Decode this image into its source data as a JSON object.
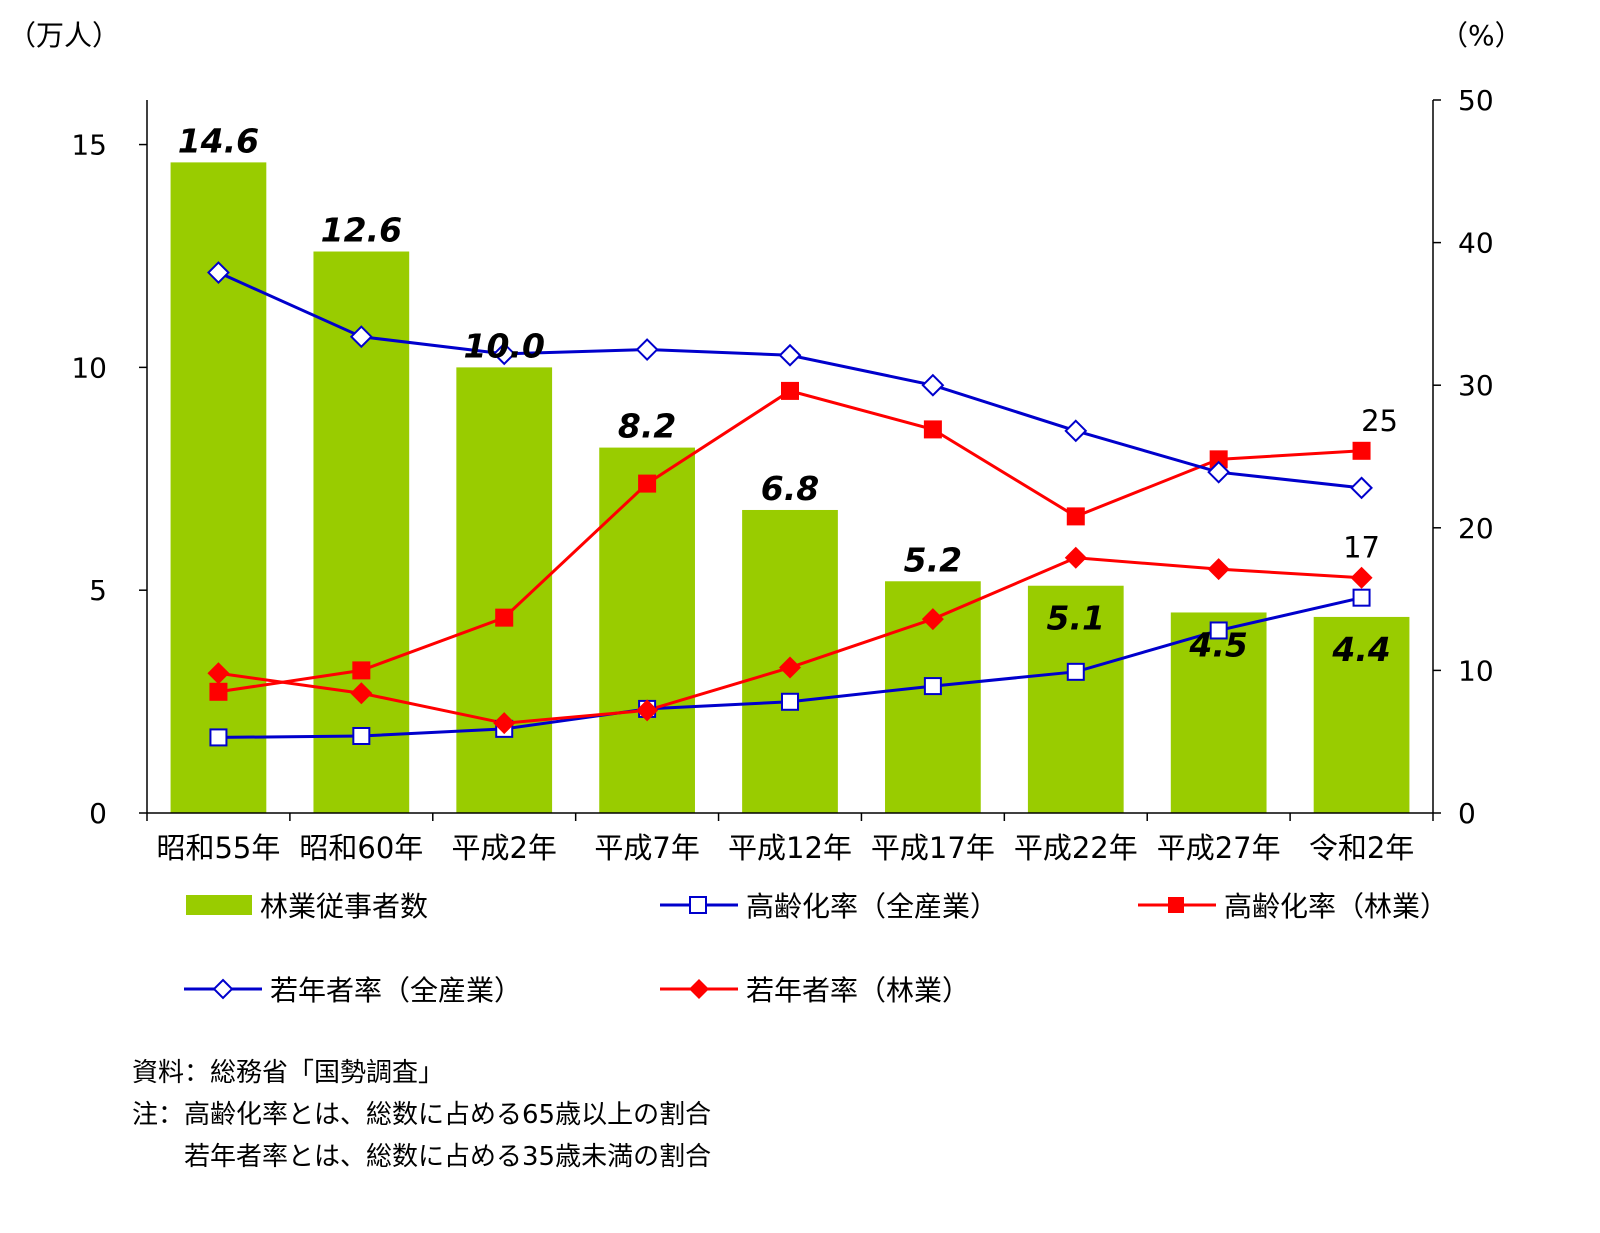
{
  "units": {
    "left": "（万人）",
    "right": "（%）"
  },
  "colors": {
    "bar": "#99cc00",
    "all_industry": "#0000cc",
    "forestry": "#ff0000"
  },
  "chart_data": {
    "type": "bar",
    "categories": [
      "昭和55年",
      "昭和60年",
      "平成2年",
      "平成7年",
      "平成12年",
      "平成17年",
      "平成22年",
      "平成27年",
      "令和2年"
    ],
    "left_axis": {
      "ylim": [
        0,
        16
      ],
      "ticks": [
        0,
        5,
        10,
        15
      ]
    },
    "right_axis": {
      "ylim": [
        0,
        50
      ],
      "ticks": [
        0,
        10,
        20,
        30,
        40,
        50
      ]
    },
    "bars": {
      "name": "林業従事者数",
      "values": [
        14.6,
        12.6,
        10.0,
        8.2,
        6.8,
        5.2,
        5.1,
        4.5,
        4.4
      ],
      "labels": [
        "14.6",
        "12.6",
        "10.0",
        "8.2",
        "6.8",
        "5.2",
        "5.1",
        "4.5",
        "4.4"
      ]
    },
    "series": [
      {
        "name": "高齢化率（全産業）",
        "axis": "right",
        "marker": "square-open",
        "color": "#0000cc",
        "values": [
          5.3,
          5.4,
          5.9,
          7.3,
          7.8,
          8.9,
          9.9,
          12.8,
          15.1
        ]
      },
      {
        "name": "高齢化率（林業）",
        "axis": "right",
        "marker": "square-filled",
        "color": "#ff0000",
        "values": [
          8.5,
          10.0,
          13.7,
          23.1,
          29.6,
          26.9,
          20.8,
          24.8,
          25.4
        ],
        "end_label": "25"
      },
      {
        "name": "若年者率（全産業）",
        "axis": "right",
        "marker": "diamond-open",
        "color": "#0000cc",
        "values": [
          37.9,
          33.4,
          32.2,
          32.5,
          32.1,
          30.0,
          26.8,
          23.9,
          22.8
        ]
      },
      {
        "name": "若年者率（林業）",
        "axis": "right",
        "marker": "diamond-filled",
        "color": "#ff0000",
        "values": [
          9.8,
          8.4,
          6.3,
          7.2,
          10.2,
          13.6,
          17.9,
          17.1,
          16.5
        ],
        "end_label": "17"
      }
    ]
  },
  "legend": [
    {
      "label": "林業従事者数"
    },
    {
      "label": "高齢化率（全産業）"
    },
    {
      "label": "高齢化率（林業）"
    },
    {
      "label": "若年者率（全産業）"
    },
    {
      "label": "若年者率（林業）"
    }
  ],
  "notes": [
    "資料：総務省「国勢調査」",
    "注：高齢化率とは、総数に占める65歳以上の割合",
    "　　若年者率とは、総数に占める35歳未満の割合"
  ]
}
